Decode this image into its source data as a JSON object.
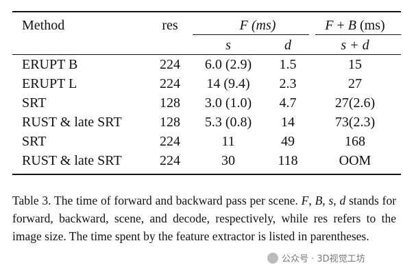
{
  "table": {
    "header": [
      "Method",
      "res",
      "F (ms)",
      [
        "F",
        " + ",
        "B",
        " (ms)"
      ]
    ],
    "subheader": [
      "s",
      "d",
      "s + d"
    ],
    "rows": [
      [
        "ERUPT B",
        "224",
        "6.0 (2.9)",
        "1.5",
        "15"
      ],
      [
        "ERUPT L",
        "224",
        "14 (9.4)",
        "2.3",
        "27"
      ],
      [
        "SRT",
        "128",
        "3.0 (1.0)",
        "4.7",
        "27(2.6)"
      ],
      [
        "RUST & late SRT",
        "128",
        "5.3 (0.8)",
        "14",
        "73(2.3)"
      ],
      [
        "SRT",
        "224",
        "11",
        "49",
        "168"
      ],
      [
        "RUST & late SRT",
        "224",
        "30",
        "118",
        "OOM"
      ]
    ]
  },
  "caption": [
    "Table 3. The time of forward and backward pass per scene. ",
    "F",
    ", ",
    "B",
    ", ",
    "s",
    ", ",
    "d",
    " stands for forward, backward, scene, and decode, respectively, while res refers to the image size. The time spent by the feature extractor is listed in parentheses."
  ],
  "watermark": "公众号 · 3D视觉工坊"
}
